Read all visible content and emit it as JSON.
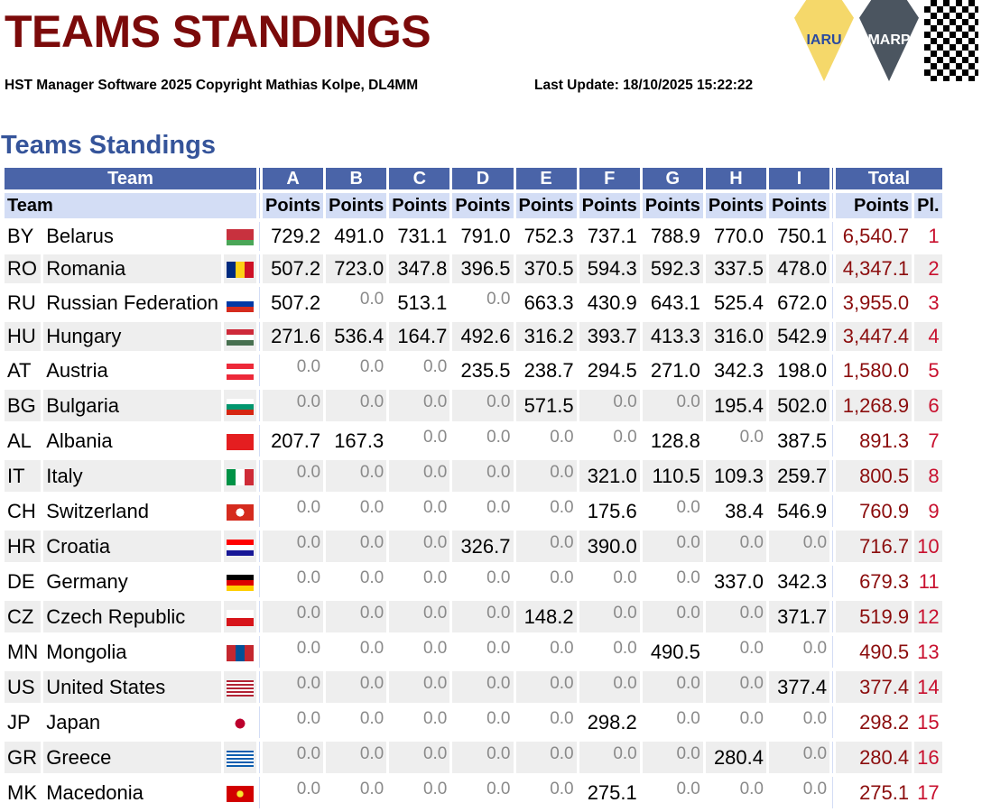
{
  "header": {
    "title": "TEAMS STANDINGS",
    "copyright": "HST Manager Software 2025 Copyright Mathias Kolpe, DL4MM",
    "last_update": "Last Update: 18/10/2025 15:22:22",
    "logos": [
      "IARU",
      "MARP"
    ]
  },
  "section_title": "Teams Standings",
  "table": {
    "group_headers": {
      "team": "Team",
      "cols": [
        "A",
        "B",
        "C",
        "D",
        "E",
        "F",
        "G",
        "H",
        "I"
      ],
      "total": "Total"
    },
    "sub_headers": {
      "team": "Team",
      "points": "Points",
      "total_points": "Points",
      "place": "Pl."
    },
    "rows": [
      {
        "code": "BY",
        "name": "Belarus",
        "points": [
          "729.2",
          "491.0",
          "731.1",
          "791.0",
          "752.3",
          "737.1",
          "788.9",
          "770.0",
          "750.1"
        ],
        "total": "6,540.7",
        "place": "1"
      },
      {
        "code": "RO",
        "name": "Romania",
        "points": [
          "507.2",
          "723.0",
          "347.8",
          "396.5",
          "370.5",
          "594.3",
          "592.3",
          "337.5",
          "478.0"
        ],
        "total": "4,347.1",
        "place": "2"
      },
      {
        "code": "RU",
        "name": "Russian Federation",
        "points": [
          "507.2",
          "0.0",
          "513.1",
          "0.0",
          "663.3",
          "430.9",
          "643.1",
          "525.4",
          "672.0"
        ],
        "total": "3,955.0",
        "place": "3"
      },
      {
        "code": "HU",
        "name": "Hungary",
        "points": [
          "271.6",
          "536.4",
          "164.7",
          "492.6",
          "316.2",
          "393.7",
          "413.3",
          "316.0",
          "542.9"
        ],
        "total": "3,447.4",
        "place": "4"
      },
      {
        "code": "AT",
        "name": "Austria",
        "points": [
          "0.0",
          "0.0",
          "0.0",
          "235.5",
          "238.7",
          "294.5",
          "271.0",
          "342.3",
          "198.0"
        ],
        "total": "1,580.0",
        "place": "5"
      },
      {
        "code": "BG",
        "name": "Bulgaria",
        "points": [
          "0.0",
          "0.0",
          "0.0",
          "0.0",
          "571.5",
          "0.0",
          "0.0",
          "195.4",
          "502.0"
        ],
        "total": "1,268.9",
        "place": "6"
      },
      {
        "code": "AL",
        "name": "Albania",
        "points": [
          "207.7",
          "167.3",
          "0.0",
          "0.0",
          "0.0",
          "0.0",
          "128.8",
          "0.0",
          "387.5"
        ],
        "total": "891.3",
        "place": "7"
      },
      {
        "code": "IT",
        "name": "Italy",
        "points": [
          "0.0",
          "0.0",
          "0.0",
          "0.0",
          "0.0",
          "321.0",
          "110.5",
          "109.3",
          "259.7"
        ],
        "total": "800.5",
        "place": "8"
      },
      {
        "code": "CH",
        "name": "Switzerland",
        "points": [
          "0.0",
          "0.0",
          "0.0",
          "0.0",
          "0.0",
          "175.6",
          "0.0",
          "38.4",
          "546.9"
        ],
        "total": "760.9",
        "place": "9"
      },
      {
        "code": "HR",
        "name": "Croatia",
        "points": [
          "0.0",
          "0.0",
          "0.0",
          "326.7",
          "0.0",
          "390.0",
          "0.0",
          "0.0",
          "0.0"
        ],
        "total": "716.7",
        "place": "10"
      },
      {
        "code": "DE",
        "name": "Germany",
        "points": [
          "0.0",
          "0.0",
          "0.0",
          "0.0",
          "0.0",
          "0.0",
          "0.0",
          "337.0",
          "342.3"
        ],
        "total": "679.3",
        "place": "11"
      },
      {
        "code": "CZ",
        "name": "Czech Republic",
        "points": [
          "0.0",
          "0.0",
          "0.0",
          "0.0",
          "148.2",
          "0.0",
          "0.0",
          "0.0",
          "371.7"
        ],
        "total": "519.9",
        "place": "12"
      },
      {
        "code": "MN",
        "name": "Mongolia",
        "points": [
          "0.0",
          "0.0",
          "0.0",
          "0.0",
          "0.0",
          "0.0",
          "490.5",
          "0.0",
          "0.0"
        ],
        "total": "490.5",
        "place": "13"
      },
      {
        "code": "US",
        "name": "United States",
        "points": [
          "0.0",
          "0.0",
          "0.0",
          "0.0",
          "0.0",
          "0.0",
          "0.0",
          "0.0",
          "377.4"
        ],
        "total": "377.4",
        "place": "14"
      },
      {
        "code": "JP",
        "name": "Japan",
        "points": [
          "0.0",
          "0.0",
          "0.0",
          "0.0",
          "0.0",
          "298.2",
          "0.0",
          "0.0",
          "0.0"
        ],
        "total": "298.2",
        "place": "15"
      },
      {
        "code": "GR",
        "name": "Greece",
        "points": [
          "0.0",
          "0.0",
          "0.0",
          "0.0",
          "0.0",
          "0.0",
          "0.0",
          "280.4",
          "0.0"
        ],
        "total": "280.4",
        "place": "16"
      },
      {
        "code": "MK",
        "name": "Macedonia",
        "points": [
          "0.0",
          "0.0",
          "0.0",
          "0.0",
          "0.0",
          "275.1",
          "0.0",
          "0.0",
          "0.0"
        ],
        "total": "275.1",
        "place": "17"
      }
    ]
  },
  "colors": {
    "title": "#7b0a0a",
    "section": "#35549a",
    "header": "#4a64a8",
    "subheader": "#d3ddf5",
    "total": "#8b0d0d",
    "place": "#c8102e"
  }
}
